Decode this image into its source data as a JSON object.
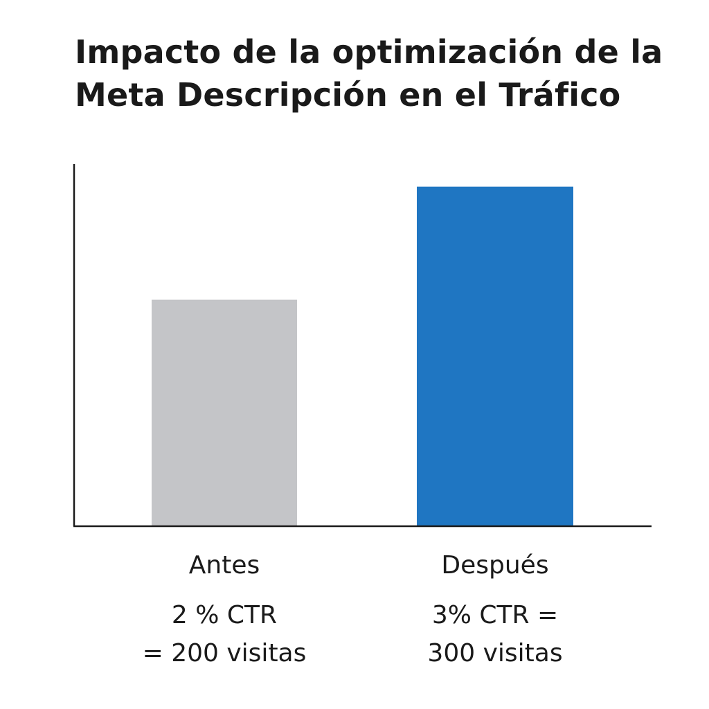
{
  "chart_data": {
    "type": "bar",
    "title_lines": [
      "Impacto de la optimización de la",
      "Meta Descripción en el Tráfico"
    ],
    "categories": [
      "Antes",
      "Después"
    ],
    "values": [
      200,
      300
    ],
    "ctr": [
      "2%",
      "3%"
    ],
    "data_labels": [
      [
        "2 % CTR",
        "= 200 visitas"
      ],
      [
        "3% CTR =",
        "300 visitas"
      ]
    ],
    "bar_colors": [
      "#c4c5c8",
      "#1f76c2"
    ],
    "axis_color": "#1a1a1a",
    "ylim": [
      0,
      320
    ],
    "xlabel": "",
    "ylabel": "",
    "grid": false,
    "legend": "none"
  }
}
